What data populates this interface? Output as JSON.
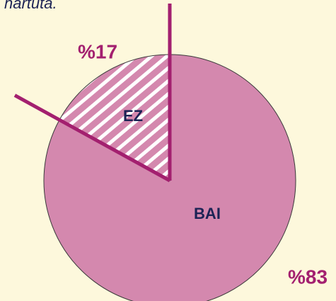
{
  "chart_data": {
    "type": "pie",
    "title": "hartuta.",
    "categories": [
      "BAI",
      "EZ"
    ],
    "values": [
      83,
      17
    ],
    "value_labels": [
      "%83",
      "%17"
    ],
    "colors": [
      "#d488ae",
      "#d488ae"
    ],
    "hatch": [
      false,
      true
    ],
    "separator_color": "#a3206f"
  }
}
